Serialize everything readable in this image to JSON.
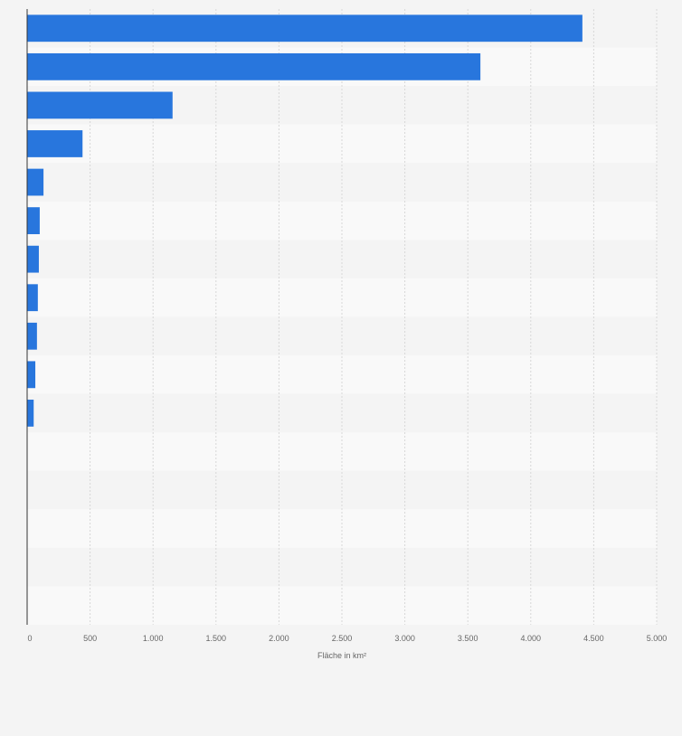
{
  "chart_data": {
    "type": "bar",
    "orientation": "horizontal",
    "categories": [
      "",
      "",
      "",
      "",
      "",
      "",
      "",
      "",
      "",
      "",
      "",
      "",
      "",
      "",
      "",
      ""
    ],
    "values": [
      4410,
      3600,
      1155,
      440,
      130,
      100,
      93,
      85,
      78,
      65,
      52,
      null,
      null,
      null,
      null,
      null
    ],
    "xlabel": "Fläche in km²",
    "ylabel": "",
    "xlim": [
      0,
      5000
    ],
    "x_ticks": [
      0,
      500,
      1000,
      1500,
      2000,
      2500,
      3000,
      3500,
      4000,
      4500,
      5000
    ],
    "x_tick_labels": [
      "0",
      "500",
      "1.000",
      "1.500",
      "2.000",
      "2.500",
      "3.000",
      "3.500",
      "4.000",
      "4.500",
      "5.000"
    ],
    "grid": true,
    "legend": "none",
    "colors": {
      "bar": "#2876dd",
      "band_dark": "#f4f4f4",
      "band_light": "#f9f9f9",
      "grid": "#d7d7d7",
      "axis": "#333333",
      "tick_text": "#666666"
    }
  }
}
